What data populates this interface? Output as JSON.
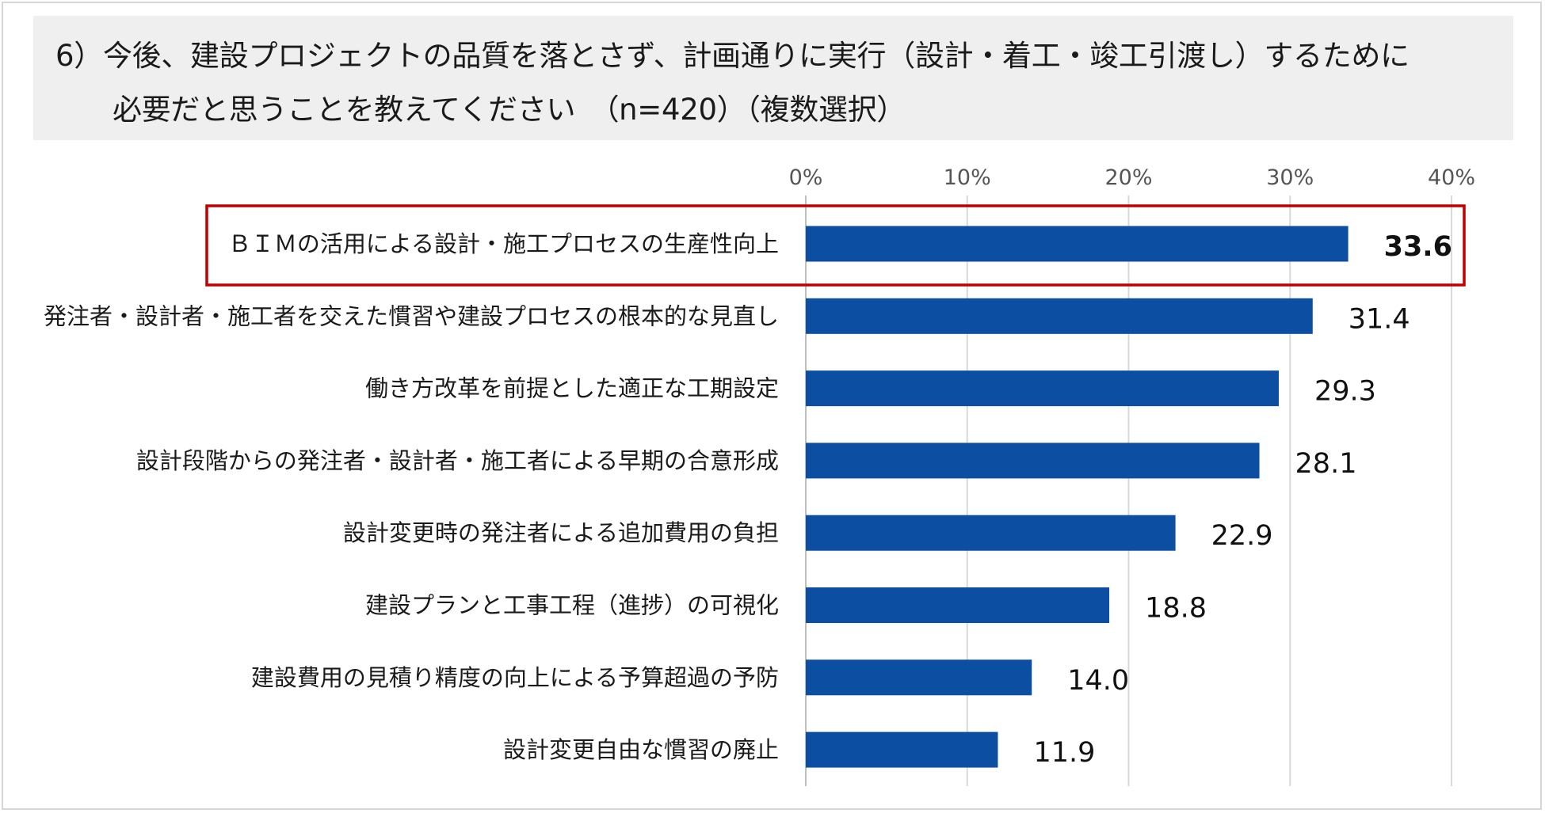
{
  "title": {
    "line1": "6）今後、建設プロジェクトの品質を落とさず、計画通りに実行（設計・着工・竣工引渡し）するために",
    "line2": "必要だと思うことを教えてください　（n=420）（複数選択）"
  },
  "chart_data": {
    "type": "bar",
    "orientation": "horizontal",
    "xlim": [
      0,
      40
    ],
    "ticks": [
      0,
      10,
      20,
      30,
      40
    ],
    "tick_labels": [
      "0%",
      "10%",
      "20%",
      "30%",
      "40%"
    ],
    "categories": [
      "ＢＩＭの活用による設計・施工プロセスの生産性向上",
      "発注者・設計者・施工者を交えた慣習や建設プロセスの根本的な見直し",
      "働き方改革を前提とした適正な工期設定",
      "設計段階からの発注者・設計者・施工者による早期の合意形成",
      "設計変更時の発注者による追加費用の負担",
      "建設プランと工事工程（進捗）の可視化",
      "建設費用の見積り精度の向上による予算超過の予防",
      "設計変更自由な慣習の廃止"
    ],
    "values": [
      33.6,
      31.4,
      29.3,
      28.1,
      22.9,
      18.8,
      14.0,
      11.9
    ],
    "value_labels": [
      "33.6",
      "31.4",
      "29.3",
      "28.1",
      "22.9",
      "18.8",
      "14.0",
      "11.9"
    ],
    "highlight_index": 0,
    "bar_color": "#0b4ea2",
    "highlight_color": "#c00000",
    "grid": true
  }
}
